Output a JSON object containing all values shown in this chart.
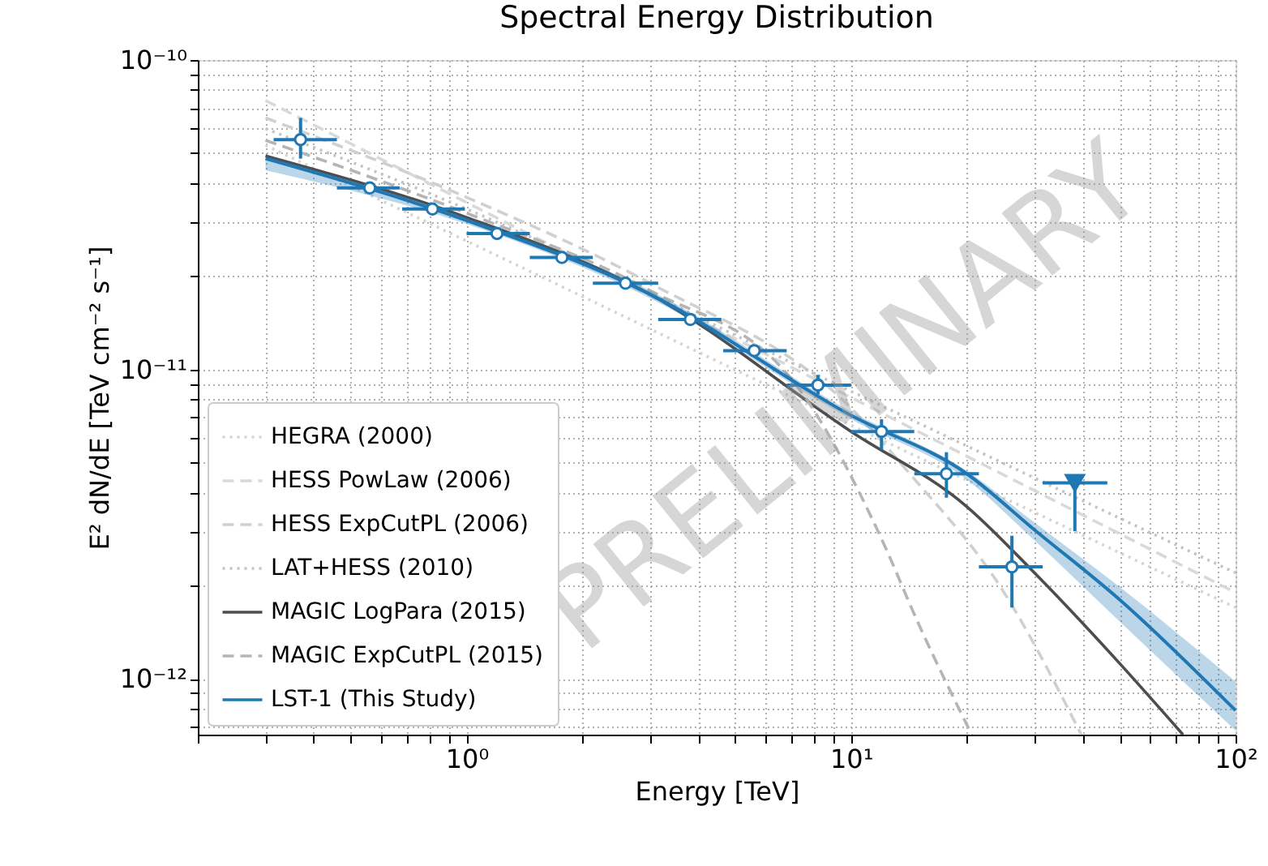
{
  "chart_data": {
    "type": "line",
    "title": "Spectral Energy Distribution",
    "xlabel": "Energy [TeV]",
    "ylabel": "E² dN/dE [TeV cm⁻² s⁻¹]",
    "log": "xy",
    "grid": true,
    "legend": "bottom left",
    "xlim": [
      0.2,
      100
    ],
    "ylim": [
      6.6e-13,
      1e-10
    ],
    "xticks": [
      {
        "value": 0.2,
        "label": null
      },
      {
        "value": 0.3,
        "label": null
      },
      {
        "value": 0.4,
        "label": null
      },
      {
        "value": 0.5,
        "label": null
      },
      {
        "value": 0.6,
        "label": null
      },
      {
        "value": 0.7,
        "label": null
      },
      {
        "value": 0.8,
        "label": null
      },
      {
        "value": 0.9,
        "label": null
      },
      {
        "value": 1,
        "label": "10⁰"
      },
      {
        "value": 2,
        "label": null
      },
      {
        "value": 3,
        "label": null
      },
      {
        "value": 4,
        "label": null
      },
      {
        "value": 5,
        "label": null
      },
      {
        "value": 6,
        "label": null
      },
      {
        "value": 7,
        "label": null
      },
      {
        "value": 8,
        "label": null
      },
      {
        "value": 9,
        "label": null
      },
      {
        "value": 10,
        "label": "10¹"
      },
      {
        "value": 20,
        "label": null
      },
      {
        "value": 30,
        "label": null
      },
      {
        "value": 40,
        "label": null
      },
      {
        "value": 50,
        "label": null
      },
      {
        "value": 60,
        "label": null
      },
      {
        "value": 70,
        "label": null
      },
      {
        "value": 80,
        "label": null
      },
      {
        "value": 90,
        "label": null
      },
      {
        "value": 100,
        "label": "10²"
      }
    ],
    "yticks": [
      {
        "value": 7e-13,
        "label": null
      },
      {
        "value": 8e-13,
        "label": null
      },
      {
        "value": 9e-13,
        "label": null
      },
      {
        "value": 1e-12,
        "label": "10⁻¹²"
      },
      {
        "value": 2e-12,
        "label": null
      },
      {
        "value": 3e-12,
        "label": null
      },
      {
        "value": 4e-12,
        "label": null
      },
      {
        "value": 5e-12,
        "label": null
      },
      {
        "value": 6e-12,
        "label": null
      },
      {
        "value": 7e-12,
        "label": null
      },
      {
        "value": 8e-12,
        "label": null
      },
      {
        "value": 9e-12,
        "label": null
      },
      {
        "value": 1e-11,
        "label": "10⁻¹¹"
      },
      {
        "value": 2e-11,
        "label": null
      },
      {
        "value": 3e-11,
        "label": null
      },
      {
        "value": 4e-11,
        "label": null
      },
      {
        "value": 5e-11,
        "label": null
      },
      {
        "value": 6e-11,
        "label": null
      },
      {
        "value": 7e-11,
        "label": null
      },
      {
        "value": 8e-11,
        "label": null
      },
      {
        "value": 9e-11,
        "label": null
      },
      {
        "value": 1e-10,
        "label": "10⁻¹⁰"
      }
    ],
    "series": [
      {
        "name": "HEGRA (2000)",
        "line_style": "dotted",
        "color": "#d4d4d4",
        "x": [
          0.3,
          1,
          10,
          100
        ],
        "values": [
          5.3e-11,
          2.6e-11,
          6.6e-12,
          1.7e-12
        ]
      },
      {
        "name": "HESS PowLaw (2006)",
        "line_style": "dashed",
        "color": "#d9d9d9",
        "x": [
          0.3,
          100
        ],
        "values": [
          7.4e-11,
          1.9e-12
        ]
      },
      {
        "name": "HESS ExpCutPL (2006)",
        "line_style": "dashed",
        "color": "#d0d0d0",
        "x": [
          0.3,
          1,
          3,
          10,
          14,
          25,
          39.7
        ],
        "values": [
          6.5e-11,
          3.6e-11,
          1.9e-11,
          7.5e-12,
          4.7e-12,
          1.9e-12,
          6.6e-13
        ]
      },
      {
        "name": "LAT+HESS (2010)",
        "line_style": "dotted",
        "color": "#c4c4c4",
        "x": [
          0.3,
          1,
          10,
          100
        ],
        "values": [
          6e-11,
          3.3e-11,
          8.5e-12,
          2.2e-12
        ]
      },
      {
        "name": "MAGIC LogPara (2015)",
        "line_style": "solid",
        "color": "#4d4d4d",
        "x": [
          0.3,
          1,
          3,
          10,
          20,
          30,
          50,
          73
        ],
        "values": [
          4.9e-11,
          3.1e-11,
          1.75e-11,
          6.3e-12,
          3.6e-12,
          2.2e-12,
          1.12e-12,
          6.6e-13
        ]
      },
      {
        "name": "MAGIC ExpCutPL (2015)",
        "line_style": "dashed",
        "color": "#b5b5b5",
        "x": [
          0.3,
          1,
          3,
          7.1,
          11.9,
          15,
          20.6
        ],
        "values": [
          5.5e-11,
          3.2e-11,
          1.8e-11,
          9.1e-12,
          2.9e-12,
          1.5e-12,
          6.6e-13
        ]
      },
      {
        "line_style": "solid",
        "color": "#1f77b4",
        "x": [
          0.3,
          1,
          3,
          10,
          20,
          30,
          50,
          100
        ],
        "values": [
          4.8e-11,
          3.03e-11,
          1.75e-11,
          7.1e-12,
          4.6e-12,
          3.03e-12,
          1.8e-12,
          7.9e-13
        ],
        "lower": [
          4.4e-11,
          2.95e-11,
          1.7e-11,
          6.9e-12,
          4.4e-12,
          2.8e-12,
          1.53e-12,
          6.8e-13
        ],
        "upper": [
          4.9e-11,
          3.1e-11,
          1.8e-11,
          7.3e-12,
          4.7e-12,
          3.2e-12,
          1.98e-12,
          9.8e-13
        ]
      },
      {
        "name": "LST-1 (This Study)",
        "type": "scatter",
        "marker": "circle",
        "color": "#1f77b4",
        "x": [
          0.37,
          0.56,
          0.815,
          1.2,
          1.77,
          2.59,
          3.82,
          5.6,
          8.2,
          12.0,
          17.7,
          26.2
        ],
        "values": [
          5.53e-11,
          3.86e-11,
          3.3e-11,
          2.75e-11,
          2.3e-11,
          1.9e-11,
          1.45e-11,
          1.15e-11,
          8.9e-12,
          6.3e-12,
          4.6e-12,
          2.3e-12
        ],
        "xerrors": [
          [
            0.315,
            0.46
          ],
          [
            0.46,
            0.67
          ],
          [
            0.68,
            0.99
          ],
          [
            1.0,
            1.46
          ],
          [
            1.46,
            2.13
          ],
          [
            2.13,
            3.15
          ],
          [
            3.15,
            4.6
          ],
          [
            4.65,
            6.8
          ],
          [
            6.8,
            10
          ],
          [
            10,
            14.6
          ],
          [
            14.6,
            21.5
          ],
          [
            21.5,
            31.5
          ]
        ],
        "errors": [
          [
            4.8e-11,
            6.5e-11
          ],
          null,
          null,
          null,
          null,
          null,
          null,
          null,
          [
            8.3e-12,
            9.6e-12
          ],
          [
            5.5e-12,
            6.9e-12
          ],
          [
            3.85e-12,
            5.4e-12
          ],
          [
            1.7e-12,
            2.9e-12
          ]
        ]
      },
      {
        "type": "scatter",
        "marker": "triangle",
        "color": "#1f77b4",
        "x": [
          38.2
        ],
        "values": [
          4.3e-12
        ],
        "xerrors": [
          [
            31.5,
            46.4
          ]
        ],
        "errors": [
          [
            3e-12,
            4.3e-12
          ]
        ]
      }
    ],
    "annotations": [
      "PRELIMINARY"
    ]
  }
}
